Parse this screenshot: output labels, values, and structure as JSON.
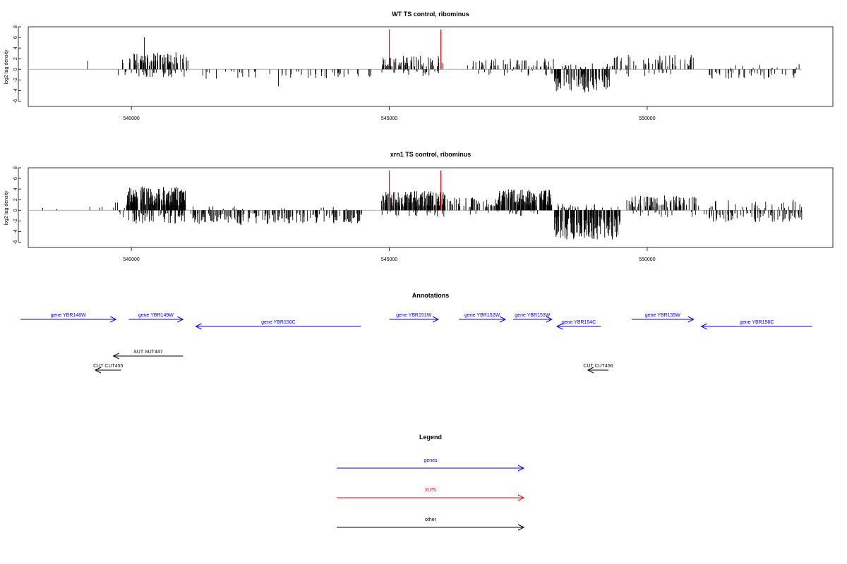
{
  "colors": {
    "gene": "#0000ff",
    "xut": "#ff0000",
    "other": "#000000",
    "bar": "#000000",
    "baseline": "#999999"
  },
  "chart_data": [
    {
      "type": "bar",
      "title": "WT TS control, ribominus",
      "ylabel": "log2 tag density",
      "xlim": [
        538000,
        553600
      ],
      "ylim": [
        -7,
        8
      ],
      "x_ticks": [
        540000,
        545000,
        550000
      ],
      "x_tick_labels": [
        "540000",
        "545000",
        "550000"
      ],
      "y_ticks": [
        -6,
        -4,
        -2,
        0,
        2,
        4,
        6,
        8
      ],
      "y_tick_labels": [
        "-6",
        "-4",
        "-2",
        "0",
        "2",
        "4",
        "6",
        "8"
      ],
      "baseline_range": [
        538000,
        553000
      ],
      "markers": [
        {
          "x": 545000,
          "y": 7.5
        },
        {
          "x": 546000,
          "y": 7.5
        }
      ],
      "segments": [
        {
          "x0": 539150,
          "x1": 539150,
          "n": 1,
          "amp": 1.6,
          "sign": 1
        },
        {
          "x0": 539700,
          "x1": 539900,
          "n": 3,
          "amp": 1.8,
          "sign": 1
        },
        {
          "x0": 539700,
          "x1": 539950,
          "n": 4,
          "amp": 1.3,
          "sign": -1
        },
        {
          "x0": 539950,
          "x1": 541100,
          "n": 80,
          "amp": 3.2,
          "sign": 1
        },
        {
          "x0": 539950,
          "x1": 541100,
          "n": 30,
          "amp": 1.5,
          "sign": -1
        },
        {
          "x0": 540250,
          "x1": 540250,
          "n": 1,
          "amp": 6.0,
          "sign": 1
        },
        {
          "x0": 541300,
          "x1": 544700,
          "n": 50,
          "amp": 1.8,
          "sign": -1
        },
        {
          "x0": 542850,
          "x1": 542850,
          "n": 1,
          "amp": 3.2,
          "sign": -1
        },
        {
          "x0": 544850,
          "x1": 546050,
          "n": 60,
          "amp": 2.6,
          "sign": 1
        },
        {
          "x0": 544850,
          "x1": 546000,
          "n": 20,
          "amp": 1.4,
          "sign": -1
        },
        {
          "x0": 546500,
          "x1": 548200,
          "n": 55,
          "amp": 2.0,
          "sign": 1
        },
        {
          "x0": 546500,
          "x1": 548200,
          "n": 15,
          "amp": 1.3,
          "sign": -1
        },
        {
          "x0": 548200,
          "x1": 549300,
          "n": 90,
          "amp": 4.5,
          "sign": -1
        },
        {
          "x0": 548200,
          "x1": 549300,
          "n": 15,
          "amp": 1.2,
          "sign": 1
        },
        {
          "x0": 549300,
          "x1": 550900,
          "n": 50,
          "amp": 2.8,
          "sign": 1
        },
        {
          "x0": 549300,
          "x1": 550900,
          "n": 12,
          "amp": 1.4,
          "sign": -1
        },
        {
          "x0": 551200,
          "x1": 553000,
          "n": 45,
          "amp": 1.9,
          "sign": -1
        },
        {
          "x0": 551200,
          "x1": 553000,
          "n": 10,
          "amp": 1.0,
          "sign": 1
        }
      ]
    },
    {
      "type": "bar",
      "title": "xrn1 TS control, ribominus",
      "ylabel": "log2 tag density",
      "xlim": [
        538000,
        553600
      ],
      "ylim": [
        -7,
        8
      ],
      "x_ticks": [
        540000,
        545000,
        550000
      ],
      "x_tick_labels": [
        "540000",
        "545000",
        "550000"
      ],
      "y_ticks": [
        -6,
        -4,
        -2,
        0,
        2,
        4,
        6,
        8
      ],
      "y_tick_labels": [
        "-6",
        "-4",
        "-2",
        "0",
        "2",
        "4",
        "6",
        "8"
      ],
      "baseline_range": [
        538000,
        553000
      ],
      "markers": [
        {
          "x": 545000,
          "y": 7.5
        },
        {
          "x": 546000,
          "y": 7.5
        }
      ],
      "segments": [
        {
          "x0": 538150,
          "x1": 538600,
          "n": 2,
          "amp": 0.6,
          "sign": 1
        },
        {
          "x0": 538950,
          "x1": 539500,
          "n": 3,
          "amp": 1.2,
          "sign": 1
        },
        {
          "x0": 539600,
          "x1": 539900,
          "n": 4,
          "amp": 2.0,
          "sign": 1
        },
        {
          "x0": 539600,
          "x1": 539900,
          "n": 3,
          "amp": 1.5,
          "sign": -1
        },
        {
          "x0": 539900,
          "x1": 541050,
          "n": 200,
          "amp": 4.5,
          "sign": 1
        },
        {
          "x0": 539900,
          "x1": 541050,
          "n": 60,
          "amp": 2.5,
          "sign": -1
        },
        {
          "x0": 541150,
          "x1": 544500,
          "n": 180,
          "amp": 2.6,
          "sign": -1
        },
        {
          "x0": 542100,
          "x1": 542150,
          "n": 3,
          "amp": 4.3,
          "sign": -1
        },
        {
          "x0": 541150,
          "x1": 544500,
          "n": 15,
          "amp": 1.2,
          "sign": 1
        },
        {
          "x0": 544850,
          "x1": 546100,
          "n": 160,
          "amp": 3.6,
          "sign": 1
        },
        {
          "x0": 544850,
          "x1": 546100,
          "n": 20,
          "amp": 1.2,
          "sign": -1
        },
        {
          "x0": 546100,
          "x1": 547100,
          "n": 50,
          "amp": 2.4,
          "sign": 1
        },
        {
          "x0": 547100,
          "x1": 548150,
          "n": 150,
          "amp": 4.0,
          "sign": 1
        },
        {
          "x0": 546300,
          "x1": 548150,
          "n": 15,
          "amp": 1.1,
          "sign": -1
        },
        {
          "x0": 548200,
          "x1": 549500,
          "n": 170,
          "amp": 5.5,
          "sign": -1
        },
        {
          "x0": 548200,
          "x1": 549500,
          "n": 25,
          "amp": 1.3,
          "sign": 1
        },
        {
          "x0": 549600,
          "x1": 551000,
          "n": 80,
          "amp": 2.8,
          "sign": 1
        },
        {
          "x0": 549600,
          "x1": 551000,
          "n": 15,
          "amp": 1.3,
          "sign": -1
        },
        {
          "x0": 551100,
          "x1": 553000,
          "n": 80,
          "amp": 2.2,
          "sign": -1
        },
        {
          "x0": 551100,
          "x1": 553000,
          "n": 30,
          "amp": 2.0,
          "sign": 1
        }
      ]
    }
  ],
  "annotations": {
    "title": "Annotations",
    "items": [
      {
        "label": "gene YBR148W",
        "start": 537850,
        "end": 539700,
        "strand": "+",
        "row": 0,
        "kind": "gene"
      },
      {
        "label": "gene YBR149W",
        "start": 539950,
        "end": 541000,
        "strand": "+",
        "row": 0,
        "kind": "gene"
      },
      {
        "label": "gene YBR150C",
        "start": 541250,
        "end": 544450,
        "strand": "-",
        "row": 1,
        "kind": "gene"
      },
      {
        "label": "gene YBR151W",
        "start": 545000,
        "end": 545950,
        "strand": "+",
        "row": 0,
        "kind": "gene"
      },
      {
        "label": "gene YBR152W",
        "start": 546350,
        "end": 547250,
        "strand": "+",
        "row": 0,
        "kind": "gene"
      },
      {
        "label": "gene YBR153W",
        "start": 547400,
        "end": 548150,
        "strand": "+",
        "row": 0,
        "kind": "gene"
      },
      {
        "label": "gene YBR154C",
        "start": 548250,
        "end": 549100,
        "strand": "-",
        "row": 1,
        "kind": "gene"
      },
      {
        "label": "gene YBR155W",
        "start": 549700,
        "end": 550900,
        "strand": "+",
        "row": 0,
        "kind": "gene"
      },
      {
        "label": "gene YBR156C",
        "start": 551050,
        "end": 553200,
        "strand": "-",
        "row": 1,
        "kind": "gene"
      },
      {
        "label": "SUT SUT447",
        "start": 539650,
        "end": 541000,
        "strand": "-",
        "row": 2,
        "kind": "other"
      },
      {
        "label": "CUT CUT455",
        "start": 539300,
        "end": 539800,
        "strand": "-",
        "row": 3,
        "kind": "other"
      },
      {
        "label": "CUT CUT456",
        "start": 548850,
        "end": 549250,
        "strand": "-",
        "row": 3,
        "kind": "other"
      }
    ]
  },
  "legend": {
    "title": "Legend",
    "items": [
      {
        "label": "genes",
        "kind": "gene"
      },
      {
        "label": "XUTs",
        "kind": "xut"
      },
      {
        "label": "other",
        "kind": "other"
      }
    ]
  }
}
